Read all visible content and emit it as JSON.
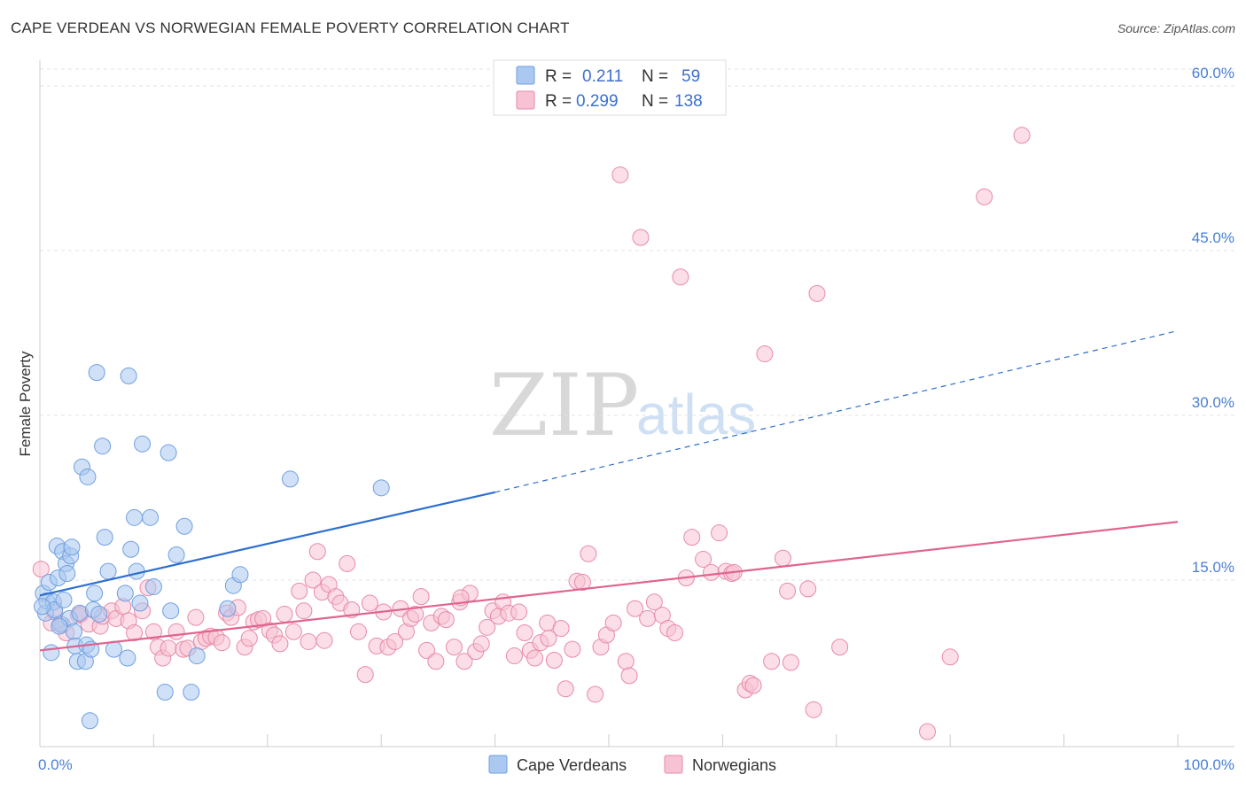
{
  "header": {
    "title": "CAPE VERDEAN VS NORWEGIAN FEMALE POVERTY CORRELATION CHART",
    "source": "Source: ZipAtlas.com"
  },
  "watermark": {
    "zip": "ZIP",
    "atlas": "atlas"
  },
  "colors": {
    "blue_fill": "#aac8f0",
    "blue_stroke": "#6f9fe0",
    "blue_line": "#2e6fcf",
    "pink_fill": "#f7c2d3",
    "pink_stroke": "#e88aa8",
    "pink_line": "#e0648f",
    "axis_text": "#4a7fd4"
  },
  "legend": {
    "row1": {
      "r_label": "R =",
      "r_value": "0.211",
      "n_label": "N =",
      "n_value": "59"
    },
    "row2": {
      "r_label": "R =",
      "r_value": "0.299",
      "n_label": "N =",
      "n_value": "138"
    }
  },
  "chart_data": {
    "type": "scatter",
    "title": "CAPE VERDEAN VS NORWEGIAN FEMALE POVERTY CORRELATION CHART",
    "xlabel": "",
    "ylabel": "Female Poverty",
    "xlim": [
      0,
      100
    ],
    "ylim": [
      0,
      64
    ],
    "x_tick_labels": {
      "min": "0.0%",
      "max": "100.0%"
    },
    "y_ticks": [
      15,
      30,
      45,
      60
    ],
    "y_tick_labels": [
      "15.0%",
      "30.0%",
      "45.0%",
      "60.0%"
    ],
    "legend_position": "bottom",
    "series": [
      {
        "name": "Cape Verdeans",
        "r": 0.211,
        "n": 59,
        "trend": {
          "x0": 0,
          "y0": 13.6,
          "x1": 40,
          "y1": 23.0,
          "dash_to_x": 100,
          "dash_to_y": 37.7
        },
        "points": [
          [
            0.3,
            13.8
          ],
          [
            0.5,
            12.0
          ],
          [
            0.6,
            13.1
          ],
          [
            0.8,
            14.8
          ],
          [
            1.0,
            8.4
          ],
          [
            1.2,
            13.0
          ],
          [
            1.3,
            12.3
          ],
          [
            1.5,
            18.1
          ],
          [
            1.6,
            15.2
          ],
          [
            1.8,
            11.0
          ],
          [
            2.0,
            17.6
          ],
          [
            2.1,
            13.2
          ],
          [
            2.3,
            16.5
          ],
          [
            2.4,
            15.6
          ],
          [
            2.6,
            11.5
          ],
          [
            2.7,
            17.2
          ],
          [
            2.8,
            18.0
          ],
          [
            3.0,
            10.3
          ],
          [
            3.1,
            9.0
          ],
          [
            3.3,
            7.6
          ],
          [
            3.5,
            12.0
          ],
          [
            3.7,
            25.3
          ],
          [
            4.0,
            7.6
          ],
          [
            4.1,
            9.1
          ],
          [
            4.2,
            24.4
          ],
          [
            4.4,
            2.2
          ],
          [
            4.5,
            8.7
          ],
          [
            4.7,
            12.3
          ],
          [
            4.8,
            13.8
          ],
          [
            5.0,
            33.9
          ],
          [
            5.2,
            11.9
          ],
          [
            5.5,
            27.2
          ],
          [
            5.7,
            18.9
          ],
          [
            6.0,
            15.8
          ],
          [
            6.5,
            8.7
          ],
          [
            7.5,
            13.8
          ],
          [
            7.7,
            7.9
          ],
          [
            7.8,
            33.6
          ],
          [
            8.0,
            17.8
          ],
          [
            8.3,
            20.7
          ],
          [
            8.5,
            15.8
          ],
          [
            8.8,
            12.9
          ],
          [
            9.0,
            27.4
          ],
          [
            9.7,
            20.7
          ],
          [
            10.0,
            14.4
          ],
          [
            11.0,
            4.8
          ],
          [
            11.3,
            26.6
          ],
          [
            11.5,
            12.2
          ],
          [
            12.0,
            17.3
          ],
          [
            12.7,
            19.9
          ],
          [
            13.3,
            4.8
          ],
          [
            13.8,
            8.1
          ],
          [
            16.5,
            12.4
          ],
          [
            17.0,
            14.5
          ],
          [
            17.6,
            15.5
          ],
          [
            22.0,
            24.2
          ],
          [
            30.0,
            23.4
          ],
          [
            0.2,
            12.6
          ],
          [
            1.7,
            10.8
          ]
        ]
      },
      {
        "name": "Norwegians",
        "r": 0.299,
        "n": 138,
        "trend": {
          "x0": 0,
          "y0": 8.6,
          "x1": 100,
          "y1": 20.3
        },
        "points": [
          [
            0.1,
            16.0
          ],
          [
            1.0,
            11.1
          ],
          [
            1.3,
            12.1
          ],
          [
            2.0,
            10.9
          ],
          [
            2.3,
            10.2
          ],
          [
            3.4,
            11.8
          ],
          [
            3.6,
            11.9
          ],
          [
            4.3,
            11.0
          ],
          [
            5.3,
            10.8
          ],
          [
            5.5,
            11.7
          ],
          [
            6.3,
            12.2
          ],
          [
            6.7,
            11.5
          ],
          [
            7.3,
            12.6
          ],
          [
            7.8,
            11.3
          ],
          [
            8.3,
            10.2
          ],
          [
            9.0,
            12.2
          ],
          [
            9.5,
            14.3
          ],
          [
            10.0,
            10.3
          ],
          [
            10.4,
            8.9
          ],
          [
            10.8,
            7.9
          ],
          [
            11.3,
            8.8
          ],
          [
            12.0,
            10.3
          ],
          [
            12.6,
            8.7
          ],
          [
            13.0,
            8.8
          ],
          [
            13.7,
            11.6
          ],
          [
            14.2,
            9.4
          ],
          [
            14.6,
            9.7
          ],
          [
            15.0,
            9.9
          ],
          [
            15.5,
            9.8
          ],
          [
            16.0,
            9.3
          ],
          [
            16.4,
            12.0
          ],
          [
            16.8,
            11.6
          ],
          [
            17.4,
            12.5
          ],
          [
            18.0,
            8.9
          ],
          [
            18.4,
            9.7
          ],
          [
            18.8,
            11.2
          ],
          [
            19.2,
            11.4
          ],
          [
            19.6,
            11.5
          ],
          [
            20.2,
            10.4
          ],
          [
            20.6,
            10.0
          ],
          [
            21.1,
            9.2
          ],
          [
            21.5,
            11.9
          ],
          [
            22.3,
            10.3
          ],
          [
            22.8,
            14.0
          ],
          [
            23.2,
            12.2
          ],
          [
            23.6,
            9.4
          ],
          [
            24.0,
            15.0
          ],
          [
            24.4,
            17.6
          ],
          [
            24.8,
            13.9
          ],
          [
            25.0,
            9.5
          ],
          [
            25.4,
            14.6
          ],
          [
            26.0,
            13.5
          ],
          [
            26.4,
            12.9
          ],
          [
            27.0,
            16.5
          ],
          [
            27.4,
            12.3
          ],
          [
            28.0,
            10.3
          ],
          [
            28.6,
            6.4
          ],
          [
            29.0,
            12.9
          ],
          [
            29.6,
            9.0
          ],
          [
            30.2,
            12.1
          ],
          [
            30.6,
            8.9
          ],
          [
            31.2,
            9.4
          ],
          [
            31.7,
            12.4
          ],
          [
            32.2,
            10.3
          ],
          [
            32.6,
            11.5
          ],
          [
            33.0,
            11.9
          ],
          [
            33.5,
            13.5
          ],
          [
            34.0,
            8.6
          ],
          [
            34.4,
            11.1
          ],
          [
            34.8,
            7.6
          ],
          [
            35.3,
            11.7
          ],
          [
            35.7,
            11.4
          ],
          [
            36.4,
            8.9
          ],
          [
            36.9,
            13.0
          ],
          [
            37.3,
            7.6
          ],
          [
            37.8,
            13.8
          ],
          [
            38.3,
            8.5
          ],
          [
            38.8,
            9.2
          ],
          [
            39.3,
            10.7
          ],
          [
            39.8,
            12.2
          ],
          [
            40.3,
            11.7
          ],
          [
            40.7,
            13.0
          ],
          [
            41.2,
            12.0
          ],
          [
            41.7,
            8.1
          ],
          [
            42.1,
            12.1
          ],
          [
            42.6,
            10.2
          ],
          [
            43.1,
            8.6
          ],
          [
            43.5,
            7.9
          ],
          [
            44.0,
            9.3
          ],
          [
            44.6,
            11.1
          ],
          [
            45.2,
            7.7
          ],
          [
            45.8,
            10.6
          ],
          [
            46.2,
            5.1
          ],
          [
            46.8,
            8.7
          ],
          [
            47.2,
            14.9
          ],
          [
            47.7,
            14.8
          ],
          [
            48.2,
            17.4
          ],
          [
            48.8,
            4.6
          ],
          [
            49.3,
            8.9
          ],
          [
            49.8,
            10.0
          ],
          [
            50.4,
            11.1
          ],
          [
            51.0,
            51.9
          ],
          [
            51.5,
            7.6
          ],
          [
            51.8,
            6.3
          ],
          [
            52.3,
            12.4
          ],
          [
            52.8,
            46.2
          ],
          [
            53.4,
            11.5
          ],
          [
            54.0,
            13.0
          ],
          [
            54.7,
            11.8
          ],
          [
            55.2,
            10.6
          ],
          [
            55.8,
            10.2
          ],
          [
            56.3,
            42.6
          ],
          [
            56.8,
            15.2
          ],
          [
            57.3,
            18.9
          ],
          [
            58.3,
            16.9
          ],
          [
            59.0,
            15.7
          ],
          [
            59.7,
            19.3
          ],
          [
            60.3,
            15.8
          ],
          [
            60.8,
            15.6
          ],
          [
            61.0,
            15.7
          ],
          [
            62.0,
            5.0
          ],
          [
            62.4,
            5.6
          ],
          [
            62.7,
            5.4
          ],
          [
            63.7,
            35.6
          ],
          [
            64.3,
            7.6
          ],
          [
            65.3,
            17.0
          ],
          [
            65.7,
            14.0
          ],
          [
            66.0,
            7.5
          ],
          [
            67.5,
            14.2
          ],
          [
            68.0,
            3.2
          ],
          [
            68.3,
            41.1
          ],
          [
            70.3,
            8.9
          ],
          [
            78.0,
            1.2
          ],
          [
            80.0,
            8.0
          ],
          [
            83.0,
            49.9
          ],
          [
            86.3,
            55.5
          ],
          [
            44.7,
            9.7
          ],
          [
            37.0,
            13.4
          ]
        ]
      }
    ]
  },
  "bottom_legend": {
    "label1": "Cape Verdeans",
    "label2": "Norwegians"
  }
}
